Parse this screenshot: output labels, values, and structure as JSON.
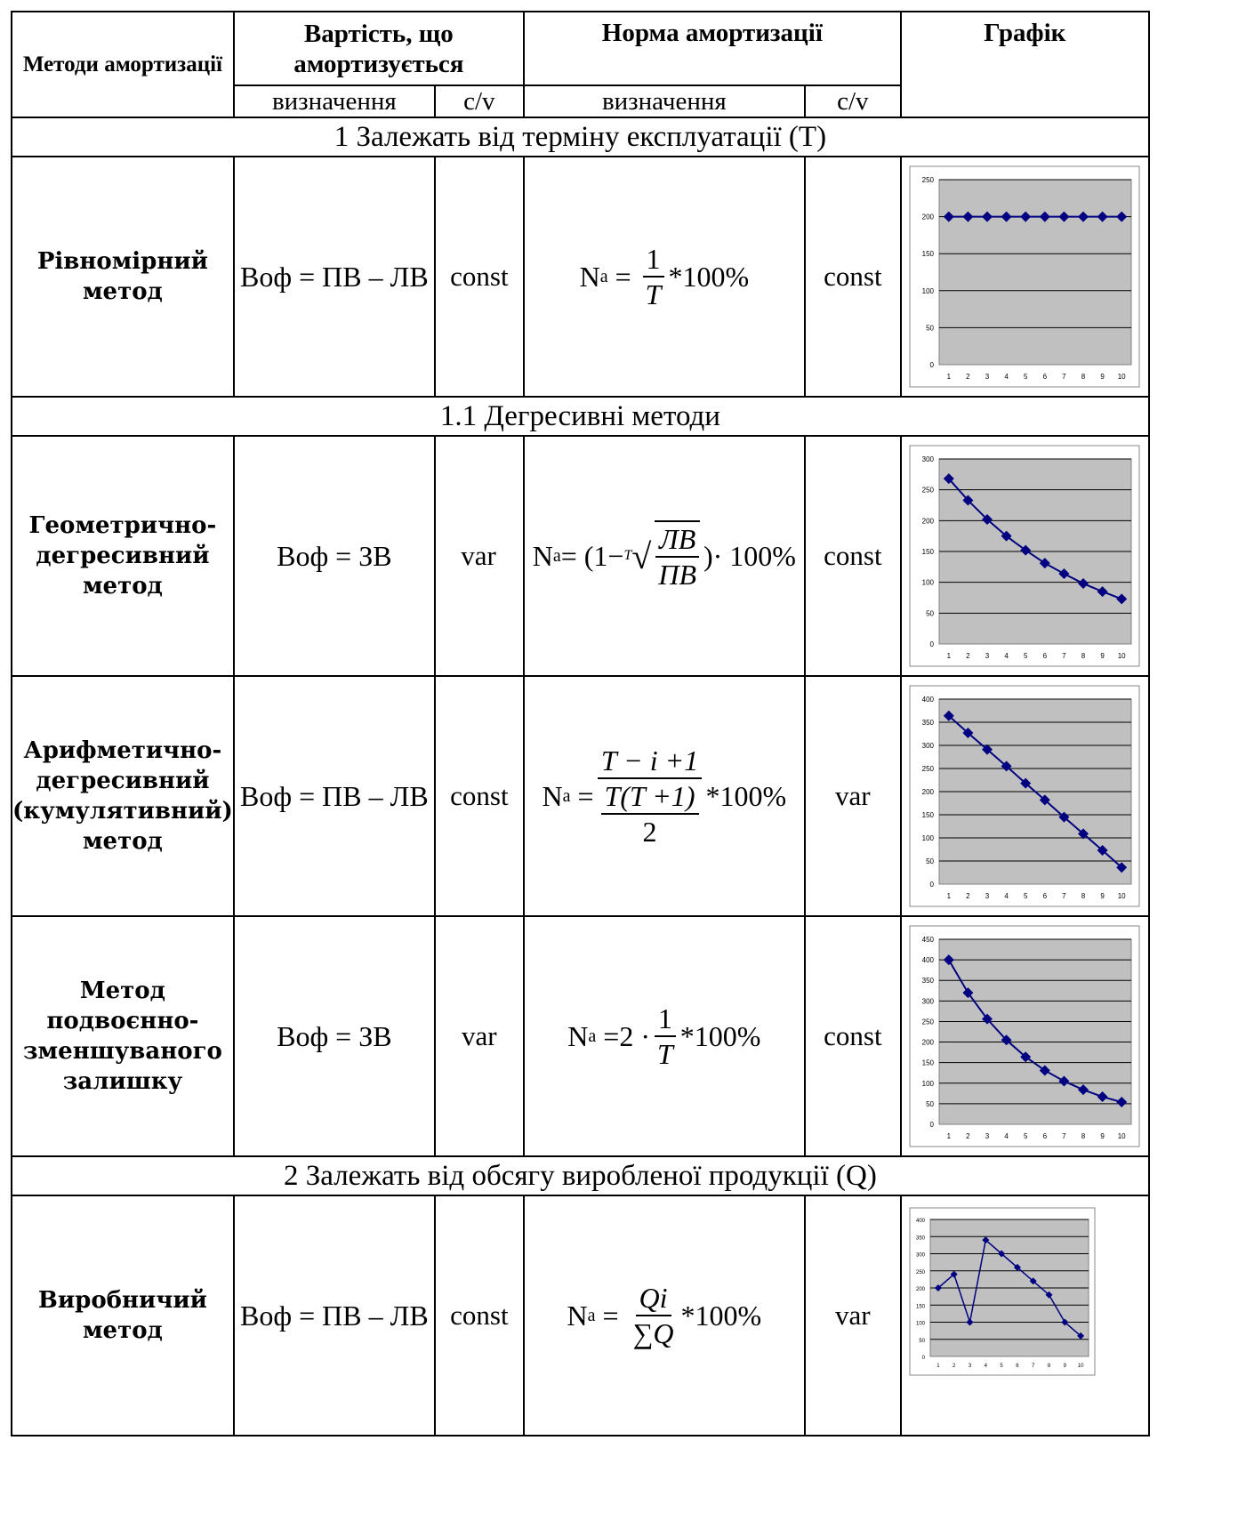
{
  "header": {
    "methods": "Методи амортизації",
    "depreciable_cost": "Вартість, що амортизується",
    "rate": "Норма амортизації",
    "chart": "Графік",
    "definition": "визначення",
    "cv": "c/v"
  },
  "sections": [
    "1 Залежать від терміну експлуатації (Т)",
    "1.1 Дегресивні методи",
    "2 Залежать від обсягу виробленої продукції (Q)"
  ],
  "rows": [
    {
      "method": "Рівномірний метод",
      "cost_formula": "Bоф = ПВ – ЛВ",
      "cost_cv": "const",
      "rate_cv": "const"
    },
    {
      "method": "Геометрично-дегресивний метод",
      "cost_formula": "Bоф = ЗВ",
      "cost_cv": "var",
      "rate_cv": "const"
    },
    {
      "method": "Арифметично-дегресивний (кумулятивний) метод",
      "cost_formula": "Bоф = ПВ – ЛВ",
      "cost_cv": "const",
      "rate_cv": "var"
    },
    {
      "method": "Метод подвоєнно-зменшуваного залишку",
      "cost_formula": "Bоф = ЗВ",
      "cost_cv": "var",
      "rate_cv": "const"
    },
    {
      "method": "Виробничий метод",
      "cost_formula": "Bоф = ПВ – ЛВ",
      "cost_cv": "const",
      "rate_cv": "var"
    }
  ],
  "formulas": {
    "f1": {
      "lhs": "Na",
      "num": "1",
      "den": "T",
      "tail": "*100%"
    },
    "f2": {
      "lhs": "Na",
      "pre": "= (1−",
      "root_index": "T",
      "num": "ЛВ",
      "den": "ПВ",
      "tail": ")· 100%"
    },
    "f3": {
      "lhs": "Na",
      "num": "T − i +1",
      "inner_num": "T(T +1)",
      "inner_den": "2",
      "tail": "*100%"
    },
    "f4": {
      "lhs": "Na",
      "pre": "=2 ·",
      "num": "1",
      "den": "T",
      "tail": "*100%"
    },
    "f5": {
      "lhs": "Na",
      "num": "Qi",
      "den": "∑Q",
      "tail": "*100%"
    }
  },
  "chart_data": [
    {
      "type": "line",
      "x": [
        1,
        2,
        3,
        4,
        5,
        6,
        7,
        8,
        9,
        10
      ],
      "values": [
        200,
        200,
        200,
        200,
        200,
        200,
        200,
        200,
        200,
        200
      ],
      "ylim": [
        0,
        250
      ],
      "yticks": [
        0,
        50,
        100,
        150,
        200,
        250
      ]
    },
    {
      "type": "line",
      "x": [
        1,
        2,
        3,
        4,
        5,
        6,
        7,
        8,
        9,
        10
      ],
      "values": [
        268,
        233,
        202,
        175,
        152,
        131,
        114,
        98,
        85,
        73
      ],
      "ylim": [
        0,
        300
      ],
      "yticks": [
        0,
        50,
        100,
        150,
        200,
        250,
        300
      ]
    },
    {
      "type": "line",
      "x": [
        1,
        2,
        3,
        4,
        5,
        6,
        7,
        8,
        9,
        10
      ],
      "values": [
        364,
        327,
        291,
        255,
        218,
        182,
        145,
        109,
        73,
        36
      ],
      "ylim": [
        0,
        400
      ],
      "yticks": [
        0,
        50,
        100,
        150,
        200,
        250,
        300,
        350,
        400
      ]
    },
    {
      "type": "line",
      "x": [
        1,
        2,
        3,
        4,
        5,
        6,
        7,
        8,
        9,
        10
      ],
      "values": [
        400,
        320,
        256,
        205,
        164,
        131,
        105,
        84,
        67,
        54
      ],
      "ylim": [
        0,
        450
      ],
      "yticks": [
        0,
        50,
        100,
        150,
        200,
        250,
        300,
        350,
        400,
        450
      ]
    },
    {
      "type": "line",
      "x": [
        1,
        2,
        3,
        4,
        5,
        6,
        7,
        8,
        9,
        10
      ],
      "values": [
        200,
        240,
        100,
        340,
        300,
        260,
        220,
        180,
        100,
        60
      ],
      "ylim": [
        0,
        400
      ],
      "yticks": [
        0,
        50,
        100,
        150,
        200,
        250,
        300,
        350,
        400
      ]
    }
  ]
}
